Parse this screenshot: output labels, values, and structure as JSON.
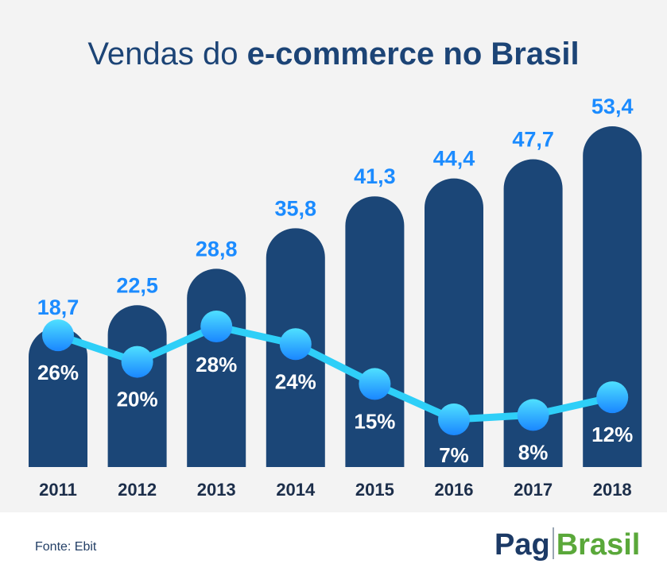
{
  "title": {
    "light": "Vendas do ",
    "bold": "e-commerce no Brasil"
  },
  "chart_data": {
    "type": "bar",
    "categories": [
      "2011",
      "2012",
      "2013",
      "2014",
      "2015",
      "2016",
      "2017",
      "2018"
    ],
    "values": [
      18.7,
      22.5,
      28.8,
      35.8,
      41.3,
      44.4,
      47.7,
      53.4
    ],
    "value_labels": [
      "18,7",
      "22,5",
      "28,8",
      "35,8",
      "41,3",
      "44,4",
      "47,7",
      "53,4"
    ],
    "line_series": {
      "values": [
        26,
        20,
        28,
        24,
        15,
        7,
        8,
        12
      ],
      "labels": [
        "26%",
        "20%",
        "28%",
        "24%",
        "15%",
        "7%",
        "8%",
        "12%"
      ]
    },
    "colors": {
      "bar": "#1b4677",
      "value_label": "#1b8bff",
      "line": "#2ecff8",
      "marker_light": "#4fe0ff",
      "marker_dark": "#1a86ff",
      "pct_label": "#ffffff",
      "year_label": "#1c2e4a"
    }
  },
  "footer": {
    "source": "Fonte: Ebit"
  },
  "logo": {
    "part1": "Pag",
    "part2": "Brasil"
  }
}
